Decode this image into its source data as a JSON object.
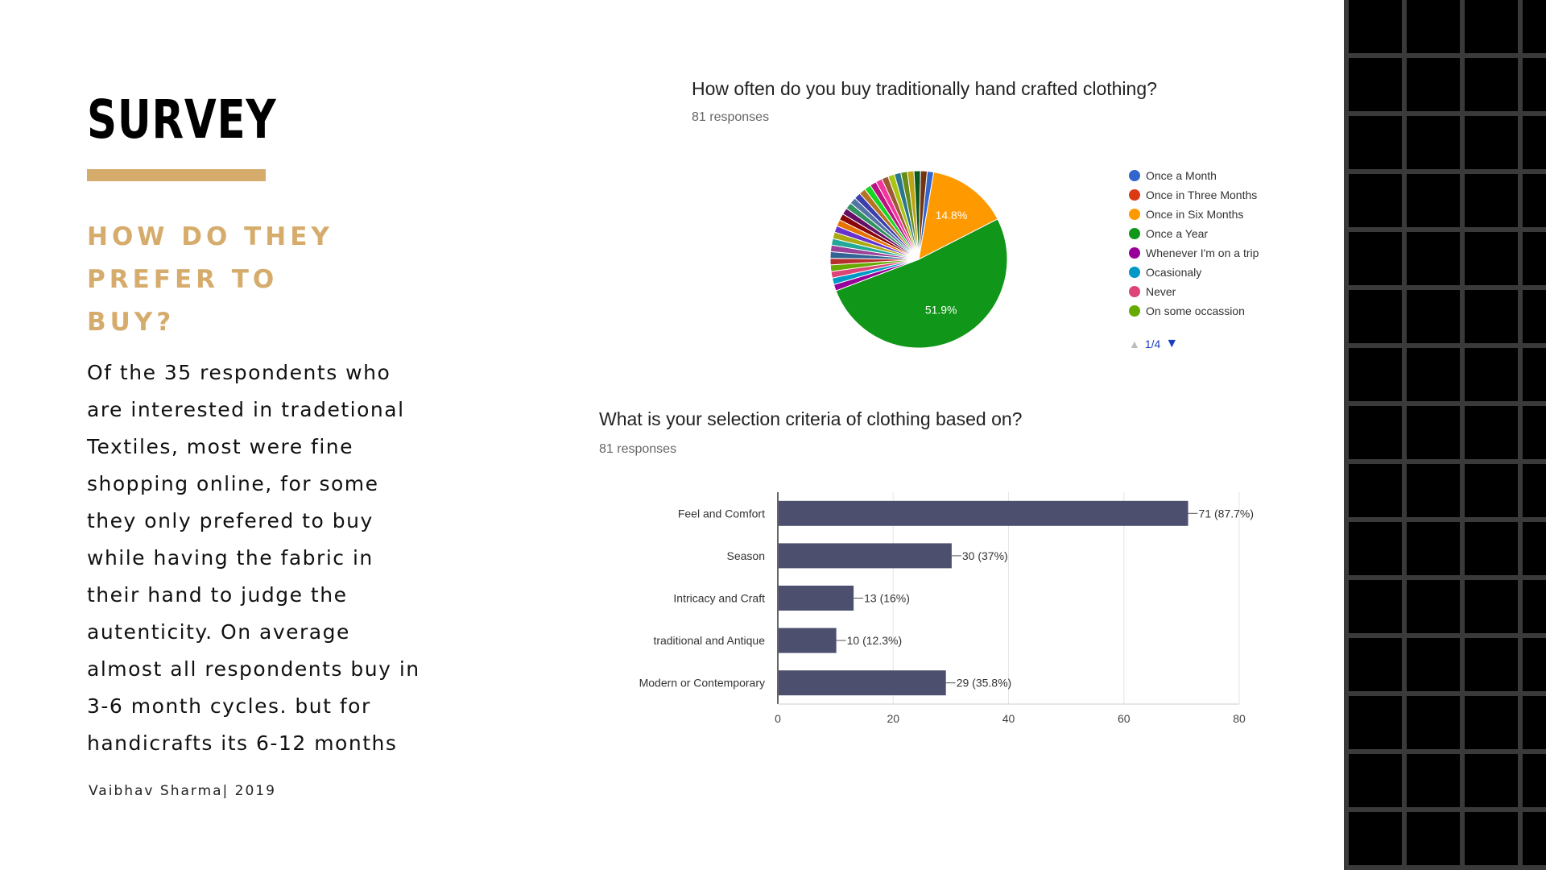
{
  "slide": {
    "title": "SURVEY",
    "subtitle": "HOW DO THEY PREFER TO BUY?",
    "body": "Of the 35 respondents who are interested in tradetional Textiles, most were fine shopping online, for some they only prefered to buy while having the fabric in their hand to judge the autenticity. On average almost all respondents buy in 3-6 month cycles. but for handicrafts its 6-12 months",
    "footer": "Vaibhav Sharma| 2019",
    "accent_color": "#d6ac6c"
  },
  "pie_chart": {
    "question": "How often do you buy traditionally hand crafted clothing?",
    "responses": "81 responses",
    "pager": "1/4"
  },
  "bar_chart": {
    "question": "What is your selection criteria of clothing based on?",
    "responses": "81 responses"
  },
  "chart_data": [
    {
      "type": "pie",
      "title": "How often do you buy traditionally hand crafted clothing?",
      "total_responses": 81,
      "legend": [
        {
          "label": "Once a Month",
          "color": "#3366cc"
        },
        {
          "label": "Once in Three Months",
          "color": "#dc3912"
        },
        {
          "label": "Once in Six Months",
          "color": "#ff9900"
        },
        {
          "label": "Once a Year",
          "color": "#109618"
        },
        {
          "label": "Whenever I'm on a trip",
          "color": "#990099"
        },
        {
          "label": "Ocasionaly",
          "color": "#0099c6"
        },
        {
          "label": "Never",
          "color": "#dd4477"
        },
        {
          "label": "On some occassion",
          "color": "#66aa00"
        }
      ],
      "legend_position": "right",
      "slices": [
        {
          "label": "Once a Month",
          "value": 1.2,
          "color": "#3366cc"
        },
        {
          "label": "Once in Six Months",
          "value": 14.8,
          "color": "#ff9900",
          "data_label": "14.8%"
        },
        {
          "label": "Once a Year",
          "value": 51.9,
          "color": "#109618",
          "data_label": "51.9%"
        },
        {
          "label": "Whenever I'm on a trip",
          "value": 1.2,
          "color": "#990099"
        },
        {
          "label": "Ocasionaly",
          "value": 1.2,
          "color": "#0099c6"
        },
        {
          "label": "Never",
          "value": 1.2,
          "color": "#dd4477"
        },
        {
          "label": "On some occassion",
          "value": 1.2,
          "color": "#66aa00"
        },
        {
          "label": "",
          "value": 1.2,
          "color": "#b82e2e"
        },
        {
          "label": "",
          "value": 1.2,
          "color": "#316395"
        },
        {
          "label": "",
          "value": 1.2,
          "color": "#994499"
        },
        {
          "label": "",
          "value": 1.2,
          "color": "#22aa99"
        },
        {
          "label": "",
          "value": 1.2,
          "color": "#aaaa11"
        },
        {
          "label": "",
          "value": 1.2,
          "color": "#6633cc"
        },
        {
          "label": "",
          "value": 1.2,
          "color": "#e67300"
        },
        {
          "label": "",
          "value": 1.2,
          "color": "#8b0707"
        },
        {
          "label": "",
          "value": 1.2,
          "color": "#651067"
        },
        {
          "label": "",
          "value": 1.2,
          "color": "#329262"
        },
        {
          "label": "",
          "value": 1.2,
          "color": "#5574a6"
        },
        {
          "label": "",
          "value": 1.2,
          "color": "#3b3eac"
        },
        {
          "label": "",
          "value": 1.2,
          "color": "#b77322"
        },
        {
          "label": "",
          "value": 1.2,
          "color": "#16d620"
        },
        {
          "label": "",
          "value": 1.2,
          "color": "#b91383"
        },
        {
          "label": "",
          "value": 1.2,
          "color": "#f4359e"
        },
        {
          "label": "",
          "value": 1.2,
          "color": "#9c5935"
        },
        {
          "label": "",
          "value": 1.2,
          "color": "#a9c413"
        },
        {
          "label": "",
          "value": 1.2,
          "color": "#2a778d"
        },
        {
          "label": "",
          "value": 1.2,
          "color": "#668d1c"
        },
        {
          "label": "",
          "value": 1.2,
          "color": "#bea413"
        },
        {
          "label": "",
          "value": 1.2,
          "color": "#0c5922"
        },
        {
          "label": "",
          "value": 1.2,
          "color": "#743411"
        }
      ]
    },
    {
      "type": "bar",
      "orientation": "horizontal",
      "title": "What is your selection criteria of clothing based on?",
      "total_responses": 81,
      "categories": [
        "Feel and Comfort",
        "Season",
        "Intricacy and Craft",
        "traditional and Antique",
        "Modern or Contemporary"
      ],
      "values": [
        71,
        30,
        13,
        10,
        29
      ],
      "data_labels": [
        "71 (87.7%)",
        "30 (37%)",
        "13 (16%)",
        "10 (12.3%)",
        "29 (35.8%)"
      ],
      "bar_color": "#4d4f6e",
      "xlim": [
        0,
        80
      ],
      "xticks": [
        0,
        20,
        40,
        60,
        80
      ],
      "grid": true
    }
  ]
}
